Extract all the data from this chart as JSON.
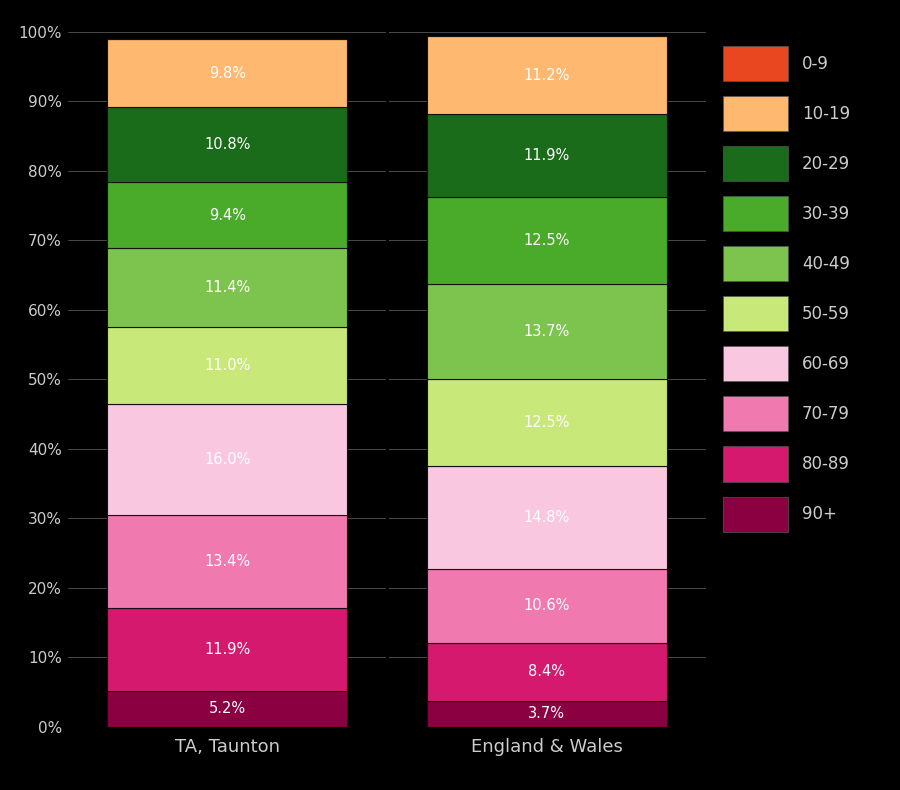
{
  "categories": [
    "TA, Taunton",
    "England & Wales"
  ],
  "age_groups_bottom_to_top": [
    "90+",
    "80-89",
    "70-79",
    "60-69",
    "50-59",
    "40-49",
    "30-39",
    "20-29",
    "10-19",
    "0-9"
  ],
  "values": {
    "TA, Taunton": [
      5.2,
      11.9,
      13.4,
      16.0,
      11.0,
      11.4,
      9.4,
      10.8,
      9.8,
      0.0
    ],
    "England & Wales": [
      3.7,
      8.4,
      10.6,
      14.8,
      12.5,
      13.7,
      12.5,
      11.9,
      11.2,
      0.0
    ]
  },
  "colors": {
    "0-9": "#e8471f",
    "10-19": "#ffb870",
    "20-29": "#1a6b1a",
    "30-39": "#4aaa2a",
    "40-49": "#7dc44e",
    "50-59": "#c8e87a",
    "60-69": "#f9c8e0",
    "70-79": "#f07ab0",
    "80-89": "#d4196e",
    "90+": "#8b0040"
  },
  "background_color": "#000000",
  "text_color": "#cccccc",
  "bar_edge_color": "#111111",
  "legend_labels_top_to_bottom": [
    "0-9",
    "10-19",
    "20-29",
    "30-39",
    "40-49",
    "50-59",
    "60-69",
    "70-79",
    "80-89",
    "90+"
  ]
}
